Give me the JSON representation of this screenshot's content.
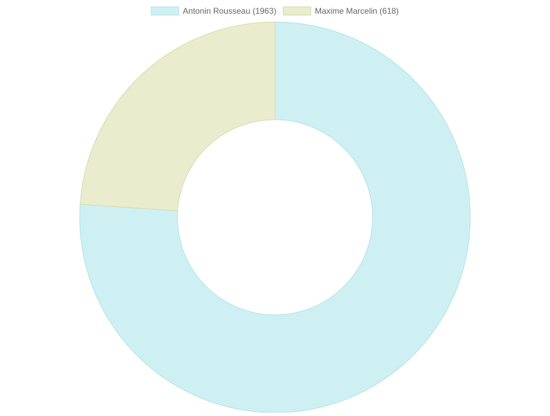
{
  "chart_data": {
    "type": "pie",
    "variant": "doughnut",
    "legend_position": "top",
    "series": [
      {
        "name": "Antonin Rousseau (1963)",
        "value": 1963,
        "fill": "#cff0f3",
        "stroke": "#aee2e8"
      },
      {
        "name": "Maxime Marcelin (618)",
        "value": 618,
        "fill": "#e9edcd",
        "stroke": "#d3dcae"
      }
    ]
  }
}
